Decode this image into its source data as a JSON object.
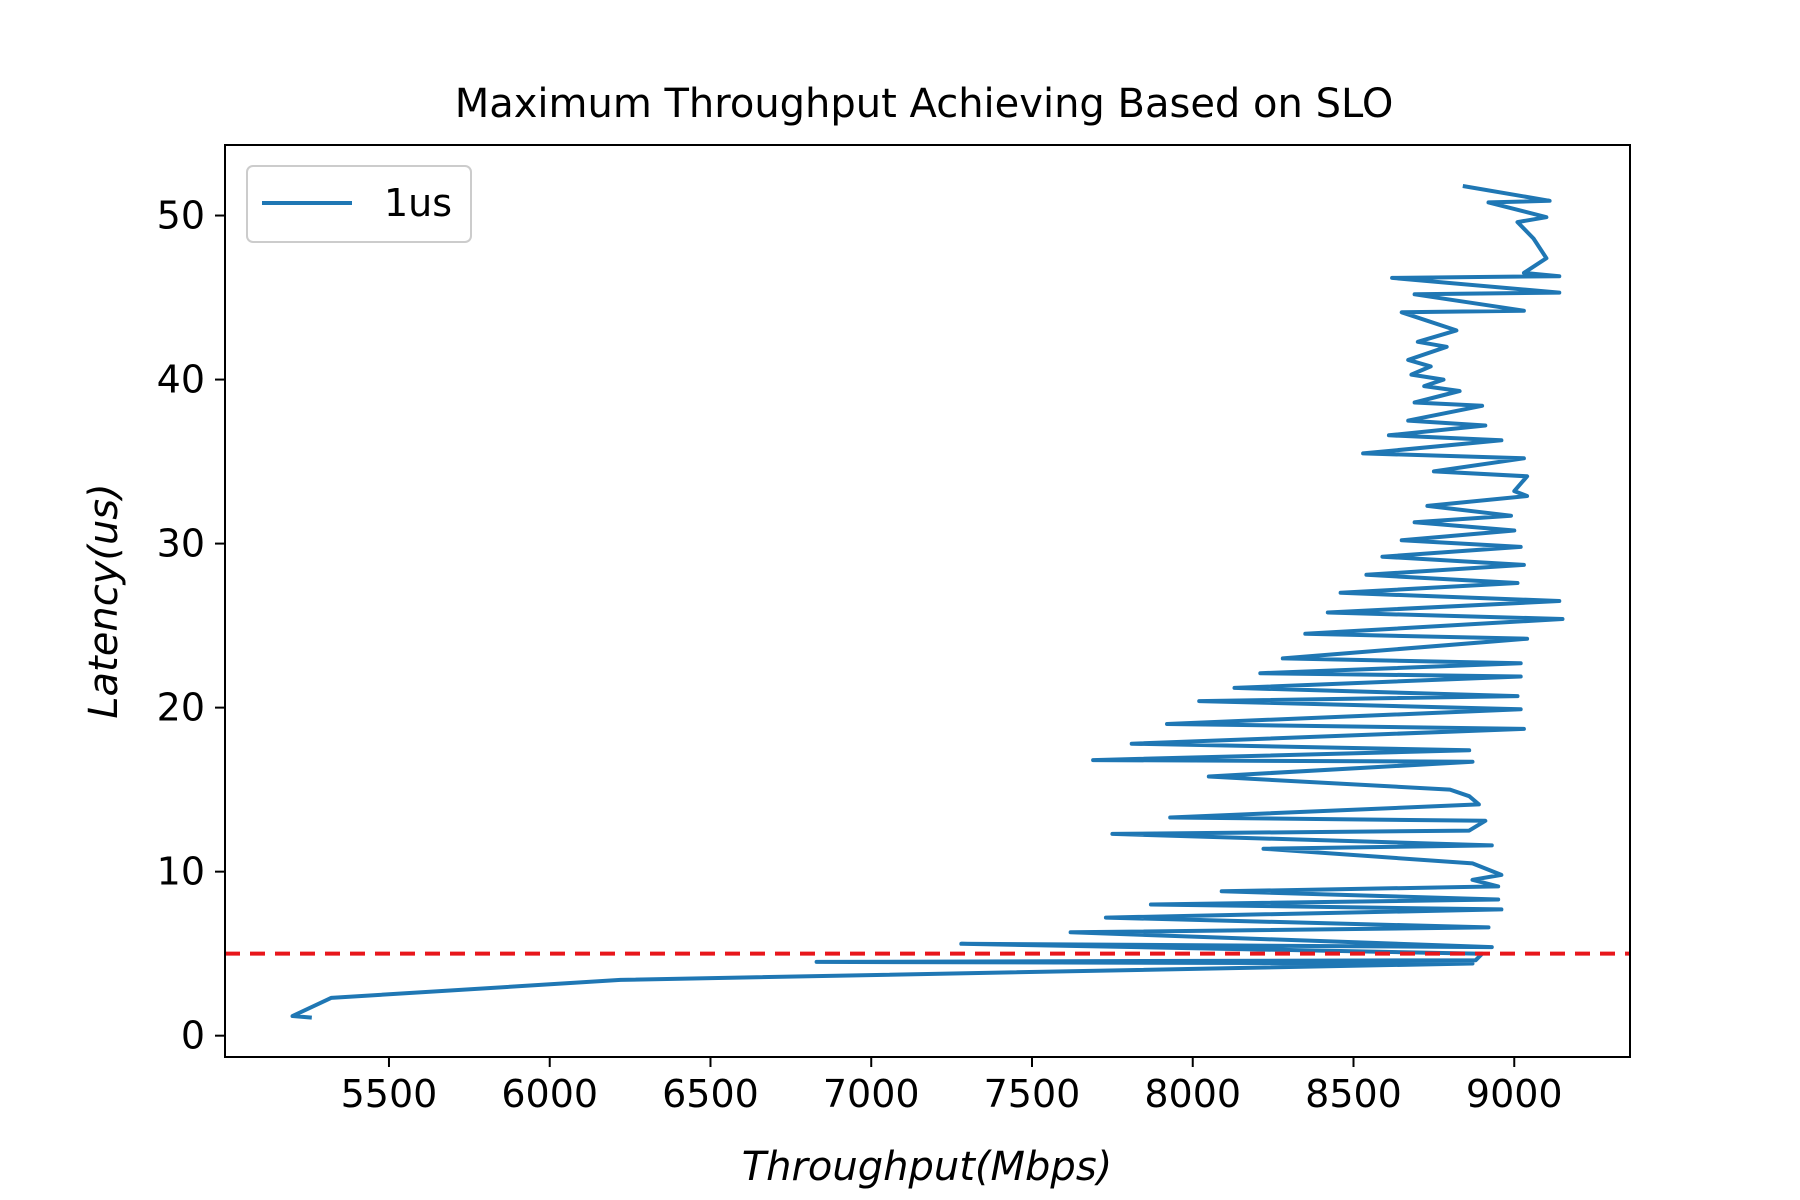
{
  "chart_data": {
    "type": "line",
    "title": "Maximum Throughput Achieving Based on SLO",
    "xlabel": "Throughput(Mbps)",
    "ylabel": "Latency(us)",
    "xlim": [
      4990,
      9360
    ],
    "ylim": [
      -1.3,
      54.3
    ],
    "xticks": [
      5500,
      6000,
      6500,
      7000,
      7500,
      8000,
      8500,
      9000
    ],
    "yticks": [
      0,
      10,
      20,
      30,
      40,
      50
    ],
    "legend_position": "top-left",
    "series": [
      {
        "name": "1us",
        "color": "#1f77b4",
        "points": [
          [
            5260,
            1.1
          ],
          [
            5200,
            1.2
          ],
          [
            5320,
            2.3
          ],
          [
            6220,
            3.4
          ],
          [
            8870,
            4.4
          ],
          [
            6830,
            4.5
          ],
          [
            8880,
            4.6
          ],
          [
            8900,
            5.0
          ],
          [
            7280,
            5.6
          ],
          [
            8930,
            5.4
          ],
          [
            7620,
            6.3
          ],
          [
            8920,
            6.6
          ],
          [
            7730,
            7.2
          ],
          [
            8960,
            7.7
          ],
          [
            7870,
            8.0
          ],
          [
            8950,
            8.3
          ],
          [
            8090,
            8.8
          ],
          [
            8950,
            9.1
          ],
          [
            8870,
            9.5
          ],
          [
            8960,
            9.8
          ],
          [
            8870,
            10.5
          ],
          [
            8220,
            11.4
          ],
          [
            8930,
            11.6
          ],
          [
            7750,
            12.3
          ],
          [
            8860,
            12.5
          ],
          [
            8910,
            13.1
          ],
          [
            7930,
            13.3
          ],
          [
            8890,
            14.1
          ],
          [
            8860,
            14.6
          ],
          [
            8800,
            15.0
          ],
          [
            8050,
            15.8
          ],
          [
            8870,
            16.7
          ],
          [
            7690,
            16.8
          ],
          [
            8860,
            17.4
          ],
          [
            7810,
            17.8
          ],
          [
            9030,
            18.7
          ],
          [
            7920,
            19.0
          ],
          [
            9020,
            19.9
          ],
          [
            8020,
            20.4
          ],
          [
            9010,
            20.7
          ],
          [
            8130,
            21.2
          ],
          [
            9020,
            21.9
          ],
          [
            8210,
            22.1
          ],
          [
            9020,
            22.7
          ],
          [
            8280,
            23.0
          ],
          [
            9040,
            24.2
          ],
          [
            8350,
            24.5
          ],
          [
            9150,
            25.4
          ],
          [
            8420,
            25.8
          ],
          [
            9140,
            26.5
          ],
          [
            8460,
            27.0
          ],
          [
            9010,
            27.6
          ],
          [
            8540,
            28.1
          ],
          [
            9030,
            28.7
          ],
          [
            8590,
            29.2
          ],
          [
            9020,
            29.8
          ],
          [
            8650,
            30.2
          ],
          [
            9000,
            30.8
          ],
          [
            8690,
            31.3
          ],
          [
            8990,
            31.7
          ],
          [
            8730,
            32.3
          ],
          [
            9040,
            32.9
          ],
          [
            9000,
            33.2
          ],
          [
            9040,
            34.1
          ],
          [
            8750,
            34.4
          ],
          [
            9030,
            35.2
          ],
          [
            8530,
            35.5
          ],
          [
            8960,
            36.3
          ],
          [
            8610,
            36.6
          ],
          [
            8910,
            37.2
          ],
          [
            8670,
            37.5
          ],
          [
            8900,
            38.4
          ],
          [
            8690,
            38.6
          ],
          [
            8830,
            39.3
          ],
          [
            8720,
            39.6
          ],
          [
            8780,
            40.0
          ],
          [
            8680,
            40.3
          ],
          [
            8740,
            40.8
          ],
          [
            8670,
            41.2
          ],
          [
            8790,
            42.0
          ],
          [
            8700,
            42.3
          ],
          [
            8820,
            43.0
          ],
          [
            8650,
            44.1
          ],
          [
            9030,
            44.2
          ],
          [
            8690,
            45.2
          ],
          [
            9140,
            45.3
          ],
          [
            8620,
            46.2
          ],
          [
            9140,
            46.3
          ],
          [
            9030,
            46.5
          ],
          [
            9100,
            47.4
          ],
          [
            9060,
            48.6
          ],
          [
            9010,
            49.6
          ],
          [
            9100,
            49.9
          ],
          [
            8920,
            50.8
          ],
          [
            9110,
            50.9
          ],
          [
            8840,
            51.8
          ]
        ]
      },
      {
        "name": "",
        "color": "#e8161b",
        "style": "dashed",
        "kind": "hline",
        "y": 5
      }
    ]
  }
}
